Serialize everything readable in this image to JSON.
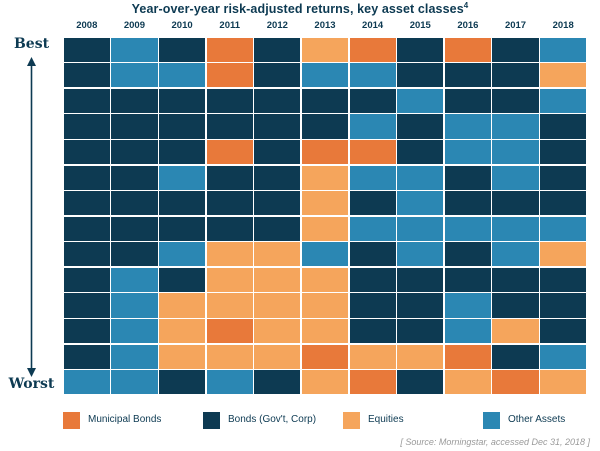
{
  "chart_data": {
    "type": "heatmap",
    "title": "Year-over-year risk-adjusted returns, key asset classes",
    "title_footnote": "4",
    "categories": [
      "2008",
      "2009",
      "2010",
      "2011",
      "2012",
      "2013",
      "2014",
      "2015",
      "2016",
      "2017",
      "2018"
    ],
    "y_top_label": "Best",
    "y_bottom_label": "Worst",
    "legend": [
      {
        "key": "M",
        "label": "Municipal Bonds",
        "color": "#e8793a"
      },
      {
        "key": "B",
        "label": "Bonds (Gov't, Corp)",
        "color": "#0d3a52"
      },
      {
        "key": "E",
        "label": "Equities",
        "color": "#f5a55c"
      },
      {
        "key": "O",
        "label": "Other Assets",
        "color": "#2b87b3"
      }
    ],
    "rankings": [
      [
        "B",
        "B",
        "B",
        "B",
        "B",
        "B",
        "B",
        "B",
        "B",
        "B",
        "B",
        "B",
        "B",
        "O"
      ],
      [
        "O",
        "O",
        "B",
        "B",
        "B",
        "B",
        "B",
        "B",
        "B",
        "O",
        "O",
        "O",
        "O",
        "O"
      ],
      [
        "B",
        "O",
        "B",
        "B",
        "B",
        "O",
        "B",
        "B",
        "O",
        "B",
        "E",
        "E",
        "E",
        "B"
      ],
      [
        "M",
        "M",
        "B",
        "B",
        "M",
        "B",
        "B",
        "B",
        "E",
        "E",
        "E",
        "M",
        "E",
        "O"
      ],
      [
        "B",
        "B",
        "B",
        "B",
        "B",
        "B",
        "B",
        "B",
        "E",
        "E",
        "E",
        "E",
        "E",
        "B"
      ],
      [
        "E",
        "O",
        "B",
        "B",
        "M",
        "E",
        "E",
        "E",
        "O",
        "E",
        "E",
        "E",
        "M",
        "E"
      ],
      [
        "M",
        "O",
        "B",
        "O",
        "M",
        "O",
        "B",
        "O",
        "B",
        "B",
        "B",
        "B",
        "E",
        "M"
      ],
      [
        "B",
        "B",
        "O",
        "B",
        "B",
        "O",
        "O",
        "O",
        "O",
        "B",
        "B",
        "B",
        "E",
        "B"
      ],
      [
        "M",
        "B",
        "B",
        "O",
        "O",
        "B",
        "B",
        "O",
        "B",
        "B",
        "O",
        "O",
        "M",
        "E"
      ],
      [
        "B",
        "B",
        "B",
        "O",
        "O",
        "O",
        "B",
        "O",
        "O",
        "B",
        "B",
        "E",
        "B",
        "M"
      ],
      [
        "O",
        "E",
        "O",
        "B",
        "B",
        "B",
        "B",
        "O",
        "E",
        "B",
        "B",
        "B",
        "O",
        "E"
      ]
    ],
    "source": "[ Source: Morningstar, accessed Dec 31, 2018 ]"
  }
}
